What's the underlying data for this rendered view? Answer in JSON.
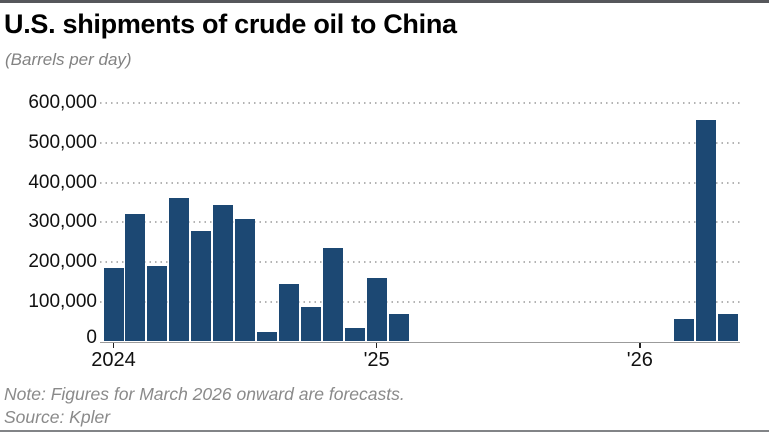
{
  "header": {
    "title": "U.S. shipments of crude oil to China",
    "subtitle": "(Barrels per day)"
  },
  "footer": {
    "note": "Note: Figures for March 2026 onward are forecasts.",
    "source": "Source: Kpler"
  },
  "chart_data": {
    "type": "bar",
    "title": "U.S. shipments of crude oil to China",
    "subtitle": "(Barrels per day)",
    "unit": "barrels per day",
    "bar_color": "#1c4873",
    "x": [
      "Jan 2024",
      "Feb 2024",
      "Mar 2024",
      "Apr 2024",
      "May 2024",
      "Jun 2024",
      "Jul 2024",
      "Aug 2024",
      "Sep 2024",
      "Oct 2024",
      "Nov 2024",
      "Dec 2024",
      "Jan 2025",
      "Feb 2025",
      "Mar 2025",
      "Apr 2025",
      "May 2025",
      "Jun 2025",
      "Jul 2025",
      "Aug 2025",
      "Sep 2025",
      "Oct 2025",
      "Nov 2025",
      "Dec 2025",
      "Jan 2026",
      "Feb 2026",
      "Mar 2026",
      "Apr 2026",
      "May 2026"
    ],
    "values": [
      185000,
      320000,
      190000,
      360000,
      277000,
      344000,
      308000,
      24000,
      145000,
      87000,
      234000,
      34000,
      161000,
      69000,
      0,
      0,
      0,
      0,
      0,
      0,
      0,
      0,
      0,
      0,
      0,
      0,
      57000,
      558000,
      69000
    ],
    "y_ticks": [
      0,
      100000,
      200000,
      300000,
      400000,
      500000,
      600000
    ],
    "x_ticks": [
      {
        "label": "2024",
        "month_index": 0
      },
      {
        "label": "'25",
        "month_index": 12
      },
      {
        "label": "'26",
        "month_index": 24
      }
    ],
    "ylim": [
      0,
      600000
    ],
    "grid": "horizontal dotted",
    "legend": "none",
    "forecast_note": "Figures for March 2026 onward are forecasts"
  }
}
